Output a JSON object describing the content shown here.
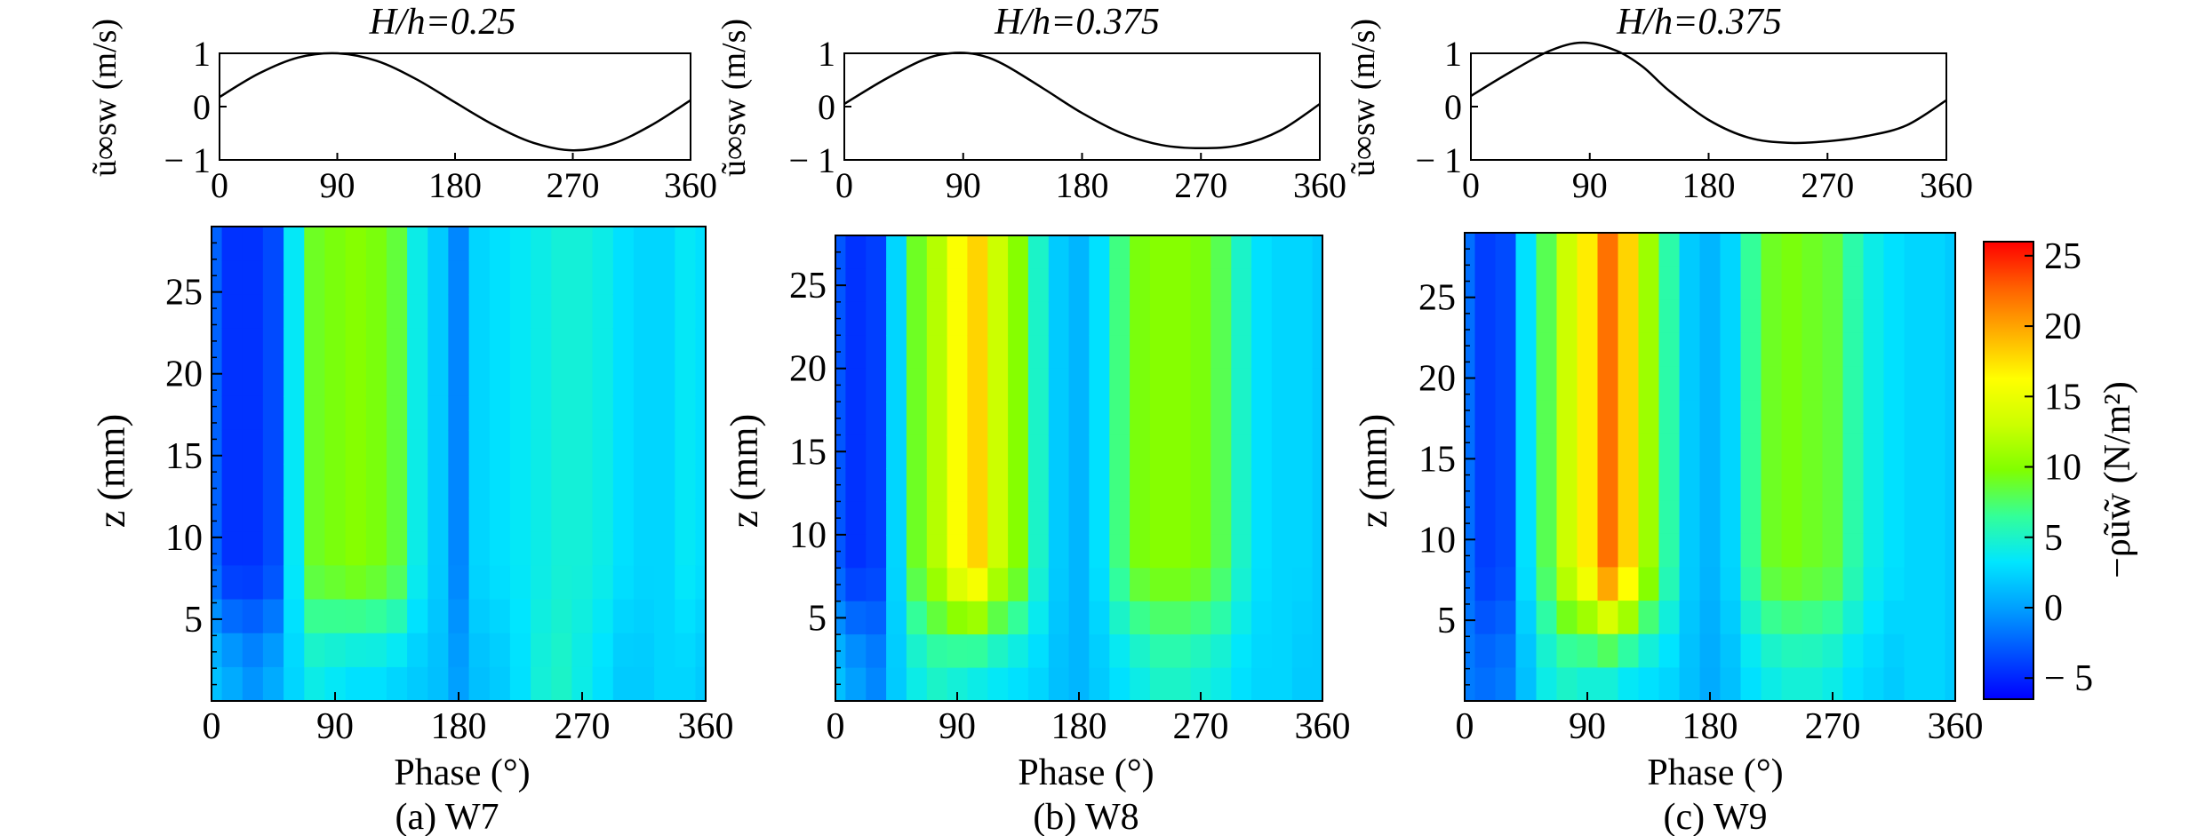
{
  "figure": {
    "panels": [
      {
        "id": "a",
        "top_title": "H/h=0.25",
        "caption": "(a) W7",
        "xlabel": "Phase (°)",
        "velocity_ylabel": "ũ∞sw (m/s)",
        "contour_ylabel": "z (mm)"
      },
      {
        "id": "b",
        "top_title": "H/h=0.375",
        "caption": "(b) W8",
        "xlabel": "Phase (°)",
        "velocity_ylabel": "ũ∞sw (m/s)",
        "contour_ylabel": "z (mm)"
      },
      {
        "id": "c",
        "top_title": "H/h=0.375",
        "caption": "(c) W9",
        "xlabel": "Phase (°)",
        "velocity_ylabel": "ũ∞sw (m/s)",
        "contour_ylabel": "z (mm)"
      }
    ],
    "colorbar": {
      "label": "−ρũw̃ (N/m²)",
      "ticks": [
        25,
        20,
        15,
        10,
        5,
        0,
        -5
      ],
      "tick_labels": [
        "25",
        "20",
        "15",
        "10",
        "5",
        "0",
        "− 5"
      ],
      "range": [
        -6.5,
        26
      ],
      "colormap": [
        "#0000ff",
        "#0050ff",
        "#00a0ff",
        "#00e6ff",
        "#33ff99",
        "#80ff00",
        "#ccff00",
        "#ffff00",
        "#ffb000",
        "#ff6000",
        "#ff0000"
      ]
    }
  },
  "chart_data": [
    {
      "type": "line",
      "title": "H/h=0.25",
      "xlabel": "",
      "ylabel": "ũ∞sw (m/s)",
      "xlim": [
        0,
        360
      ],
      "ylim": [
        -1,
        1
      ],
      "xticks": [
        0,
        90,
        180,
        270,
        360
      ],
      "yticks": [
        1,
        0,
        -1
      ],
      "ytick_labels": [
        "1",
        "0",
        "− 1"
      ],
      "x": [
        0,
        30,
        60,
        90,
        120,
        150,
        180,
        210,
        240,
        270,
        300,
        330,
        360
      ],
      "y": [
        0.18,
        0.62,
        0.92,
        1.0,
        0.86,
        0.52,
        0.08,
        -0.35,
        -0.68,
        -0.82,
        -0.7,
        -0.35,
        0.12
      ]
    },
    {
      "type": "line",
      "title": "H/h=0.375",
      "xlabel": "",
      "ylabel": "ũ∞sw (m/s)",
      "xlim": [
        0,
        360
      ],
      "ylim": [
        -1,
        1
      ],
      "xticks": [
        0,
        90,
        180,
        270,
        360
      ],
      "yticks": [
        1,
        0,
        -1
      ],
      "ytick_labels": [
        "1",
        "0",
        "− 1"
      ],
      "x": [
        0,
        30,
        60,
        80,
        100,
        120,
        150,
        180,
        210,
        240,
        270,
        300,
        330,
        360
      ],
      "y": [
        0.05,
        0.5,
        0.88,
        1.0,
        0.98,
        0.8,
        0.35,
        -0.12,
        -0.5,
        -0.72,
        -0.78,
        -0.72,
        -0.45,
        0.05
      ]
    },
    {
      "type": "line",
      "title": "H/h=0.375",
      "xlabel": "",
      "ylabel": "ũ∞sw (m/s)",
      "xlim": [
        0,
        360
      ],
      "ylim": [
        -1,
        1
      ],
      "xticks": [
        0,
        90,
        180,
        270,
        360
      ],
      "yticks": [
        1,
        0,
        -1
      ],
      "ytick_labels": [
        "1",
        "0",
        "− 1"
      ],
      "x": [
        0,
        30,
        60,
        85,
        110,
        130,
        150,
        180,
        210,
        240,
        270,
        300,
        330,
        360
      ],
      "y": [
        0.2,
        0.65,
        1.05,
        1.2,
        1.05,
        0.75,
        0.3,
        -0.25,
        -0.58,
        -0.68,
        -0.65,
        -0.55,
        -0.35,
        0.12
      ]
    },
    {
      "type": "heatmap",
      "title": "(a) W7",
      "xlabel": "Phase (°)",
      "ylabel": "z (mm)",
      "xlim": [
        0,
        360
      ],
      "ylim": [
        0,
        29
      ],
      "xticks": [
        0,
        90,
        180,
        270,
        360
      ],
      "yticks": [
        5,
        10,
        15,
        20,
        25
      ],
      "colorbar_label": "−ρũw̃ (N/m²)",
      "phase_bands_deg": [
        0,
        15,
        30,
        45,
        60,
        75,
        90,
        105,
        120,
        135,
        150,
        165,
        180,
        195,
        210,
        225,
        240,
        255,
        270,
        285,
        300,
        315,
        330,
        345,
        360
      ],
      "upper_values": [
        -2.5,
        -4.5,
        -4.5,
        -3.5,
        3.5,
        9,
        9.5,
        10,
        9.5,
        8.5,
        4,
        2,
        -1,
        2.5,
        3,
        3.5,
        4,
        4.5,
        4.5,
        4,
        3,
        2.5,
        2.5,
        3.5,
        3
      ],
      "near_bed_values": [
        1.5,
        0.5,
        -0.5,
        0.5,
        2.5,
        4,
        3.5,
        3,
        3,
        2.5,
        2,
        1.5,
        0,
        1.5,
        2,
        3,
        4.5,
        5,
        4,
        3,
        2,
        2,
        2.5,
        2.5,
        2
      ]
    },
    {
      "type": "heatmap",
      "title": "(b) W8",
      "xlabel": "Phase (°)",
      "ylabel": "z (mm)",
      "xlim": [
        0,
        360
      ],
      "ylim": [
        0,
        28
      ],
      "xticks": [
        0,
        90,
        180,
        270,
        360
      ],
      "yticks": [
        5,
        10,
        15,
        20,
        25
      ],
      "colorbar_label": "−ρũw̃ (N/m²)",
      "phase_bands_deg": [
        0,
        15,
        30,
        45,
        60,
        75,
        90,
        105,
        120,
        135,
        150,
        165,
        180,
        195,
        210,
        225,
        240,
        255,
        270,
        285,
        300,
        315,
        330,
        345,
        360
      ],
      "upper_values": [
        -3,
        -4.5,
        -4,
        2.5,
        9,
        12,
        16,
        18,
        13,
        10,
        5,
        2,
        1,
        3,
        7,
        9.5,
        10,
        10,
        9.5,
        8,
        5,
        3,
        2.5,
        2.5,
        2
      ],
      "near_bed_values": [
        1.5,
        0,
        -1,
        2,
        4,
        5,
        4.5,
        4,
        3.5,
        3,
        2.5,
        1.5,
        1,
        2,
        3,
        4,
        5,
        5,
        4.5,
        4,
        3,
        2.5,
        2.5,
        2,
        2
      ]
    },
    {
      "type": "heatmap",
      "title": "(c) W9",
      "xlabel": "Phase (°)",
      "ylabel": "z (mm)",
      "xlim": [
        0,
        360
      ],
      "ylim": [
        0,
        29
      ],
      "xticks": [
        0,
        90,
        180,
        270,
        360
      ],
      "yticks": [
        5,
        10,
        15,
        20,
        25
      ],
      "colorbar_label": "−ρũw̃ (N/m²)",
      "phase_bands_deg": [
        0,
        15,
        30,
        45,
        60,
        75,
        90,
        105,
        120,
        135,
        150,
        165,
        180,
        195,
        210,
        225,
        240,
        255,
        270,
        285,
        300,
        315,
        330,
        345,
        360
      ],
      "upper_values": [
        -2,
        -4,
        -3.5,
        3,
        8,
        13,
        17,
        22,
        18,
        11,
        6,
        2,
        1,
        2.5,
        6.5,
        9,
        9.5,
        9,
        8.5,
        6,
        4,
        3,
        2.5,
        2.5,
        2
      ],
      "near_bed_values": [
        -1.5,
        -2,
        -1.5,
        1.5,
        4,
        5,
        4.5,
        4.5,
        3.5,
        3,
        2.5,
        1.5,
        0.5,
        1.5,
        3,
        4,
        4.5,
        4.5,
        4,
        3,
        2.5,
        2,
        2.5,
        2.5,
        2
      ]
    }
  ]
}
